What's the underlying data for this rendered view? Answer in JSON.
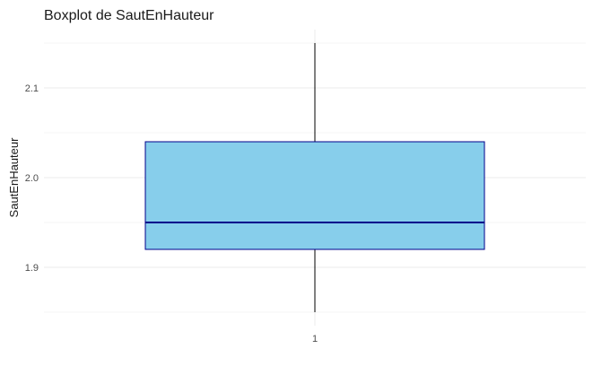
{
  "chart_data": {
    "type": "boxplot",
    "title": "Boxplot de SautEnHauteur",
    "xlabel": "",
    "ylabel": "SautEnHauteur",
    "categories": [
      "1"
    ],
    "boxes": [
      {
        "category": "1",
        "min": 1.85,
        "q1": 1.92,
        "median": 1.95,
        "q3": 2.04,
        "max": 2.15
      }
    ],
    "ylim": [
      1.85,
      2.15
    ],
    "y_ticks": [
      1.9,
      2.0,
      2.1
    ],
    "y_tick_labels": [
      "1.9",
      "2.0",
      "2.1"
    ],
    "grid": true,
    "colors": {
      "box_fill": "#87CEEB",
      "box_border": "#00008B",
      "median": "#00008B",
      "whisker": "#000000",
      "grid": "#ebebeb"
    }
  }
}
